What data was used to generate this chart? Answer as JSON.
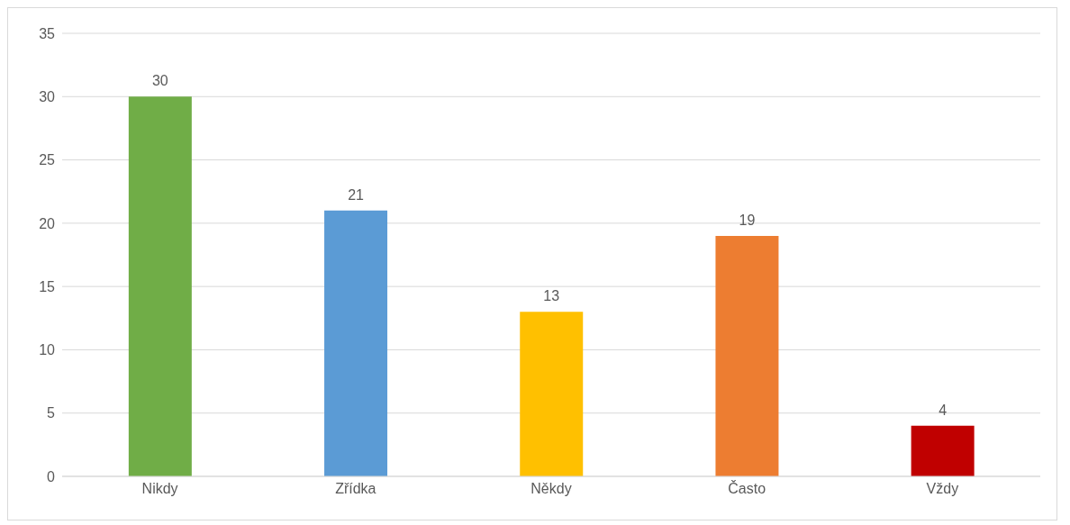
{
  "chart_data": {
    "type": "bar",
    "categories": [
      "Nikdy",
      "Zřídka",
      "Někdy",
      "Často",
      "Vždy"
    ],
    "values": [
      30,
      21,
      13,
      19,
      4
    ],
    "colors": [
      "#70ad47",
      "#5b9bd5",
      "#ffc000",
      "#ed7d31",
      "#c00000"
    ],
    "ylim": [
      0,
      35
    ],
    "yticks": [
      0,
      5,
      10,
      15,
      20,
      25,
      30,
      35
    ],
    "grid": "y",
    "data_labels": true
  }
}
